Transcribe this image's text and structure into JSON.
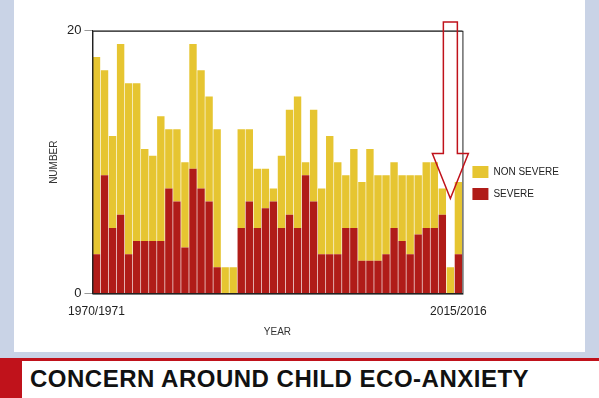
{
  "chart_data": {
    "type": "bar",
    "stacked": true,
    "x_label": "YEAR",
    "y_label": "NUMBER",
    "annotation": "CONCERN AROUND CHILD ECO-ANXIETY",
    "categories": [
      "1970/1971",
      null,
      null,
      null,
      null,
      null,
      null,
      null,
      null,
      null,
      null,
      null,
      null,
      null,
      null,
      null,
      null,
      null,
      null,
      null,
      null,
      null,
      null,
      null,
      null,
      null,
      null,
      null,
      null,
      null,
      null,
      null,
      null,
      null,
      null,
      null,
      null,
      null,
      null,
      null,
      null,
      null,
      null,
      null,
      null,
      "2015/2016"
    ],
    "series": [
      {
        "name": "SEVERE",
        "color": "#b01c18",
        "values": [
          3,
          9,
          5,
          6,
          3,
          4,
          4,
          4,
          4,
          8,
          7,
          3.5,
          9.5,
          8,
          7,
          2,
          0,
          0,
          5,
          7,
          5,
          6.5,
          7,
          5,
          6,
          5,
          9,
          7,
          3,
          3,
          3,
          5,
          5,
          2.5,
          2.5,
          2.5,
          3,
          5,
          4,
          3,
          4.5,
          5,
          5,
          6,
          0,
          3
        ]
      },
      {
        "name": "NON SEVERE",
        "color": "#e6c531",
        "values": [
          15,
          8,
          7,
          13,
          13,
          12,
          7,
          6.5,
          9.5,
          4.5,
          5.5,
          6.5,
          9.5,
          9,
          8,
          10.5,
          2,
          2,
          7.5,
          5.5,
          4.5,
          3,
          1,
          5.5,
          8,
          10,
          1,
          7,
          5,
          9,
          7,
          4,
          6,
          6,
          8.5,
          6.5,
          6,
          5,
          5,
          6,
          4.5,
          5,
          5,
          2,
          2,
          5.5
        ]
      }
    ],
    "ylim": [
      0,
      20
    ],
    "yticks": [
      0,
      20
    ],
    "grid": true,
    "legend": "right"
  }
}
